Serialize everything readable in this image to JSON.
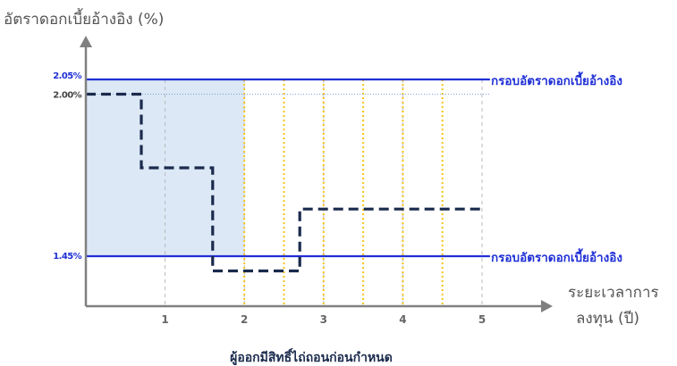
{
  "chart_data": {
    "type": "line",
    "ylabel": "อัตราดอกเบี้ยอ้างอิง (%)",
    "xlabel_lines": [
      "ระยะเวลาการ",
      "ลงทุน (ปี)"
    ],
    "caption": "ผู้ออกมีสิทธิ์ไถ่ถอนก่อนกำหนด",
    "x_ticks": [
      1,
      2,
      3,
      4,
      5
    ],
    "xlim": [
      0,
      5.1
    ],
    "ylim": [
      1.0,
      2.3
    ],
    "upper_band": {
      "value": 2.05,
      "label": "2.05%",
      "name": "กรอบอัตราดอกเบี้ยอ้างอิง",
      "color": "#1f2fd6"
    },
    "lower_band": {
      "value": 1.45,
      "label": "1.45%",
      "name": "กรอบอัตราดอกเบี้ยอ้างอิง",
      "color": "#1f2fd6"
    },
    "initial_rate": {
      "value": 2.0,
      "label": "2.00%"
    },
    "call_period": {
      "x_from": 0,
      "x_to": 2,
      "color": "#dce8f5"
    },
    "call_dates": [
      2.0,
      2.5,
      3.0,
      3.5,
      4.0,
      4.5
    ],
    "call_date_color": "#f5c518",
    "series": [
      {
        "style": "dashed",
        "color": "#1a2a4d",
        "points": [
          [
            0,
            2.0
          ],
          [
            0.7,
            2.0
          ],
          [
            0.7,
            1.75
          ],
          [
            1.6,
            1.75
          ],
          [
            1.6,
            1.4
          ],
          [
            2.7,
            1.4
          ],
          [
            2.7,
            1.61
          ],
          [
            5.0,
            1.61
          ]
        ]
      }
    ]
  }
}
